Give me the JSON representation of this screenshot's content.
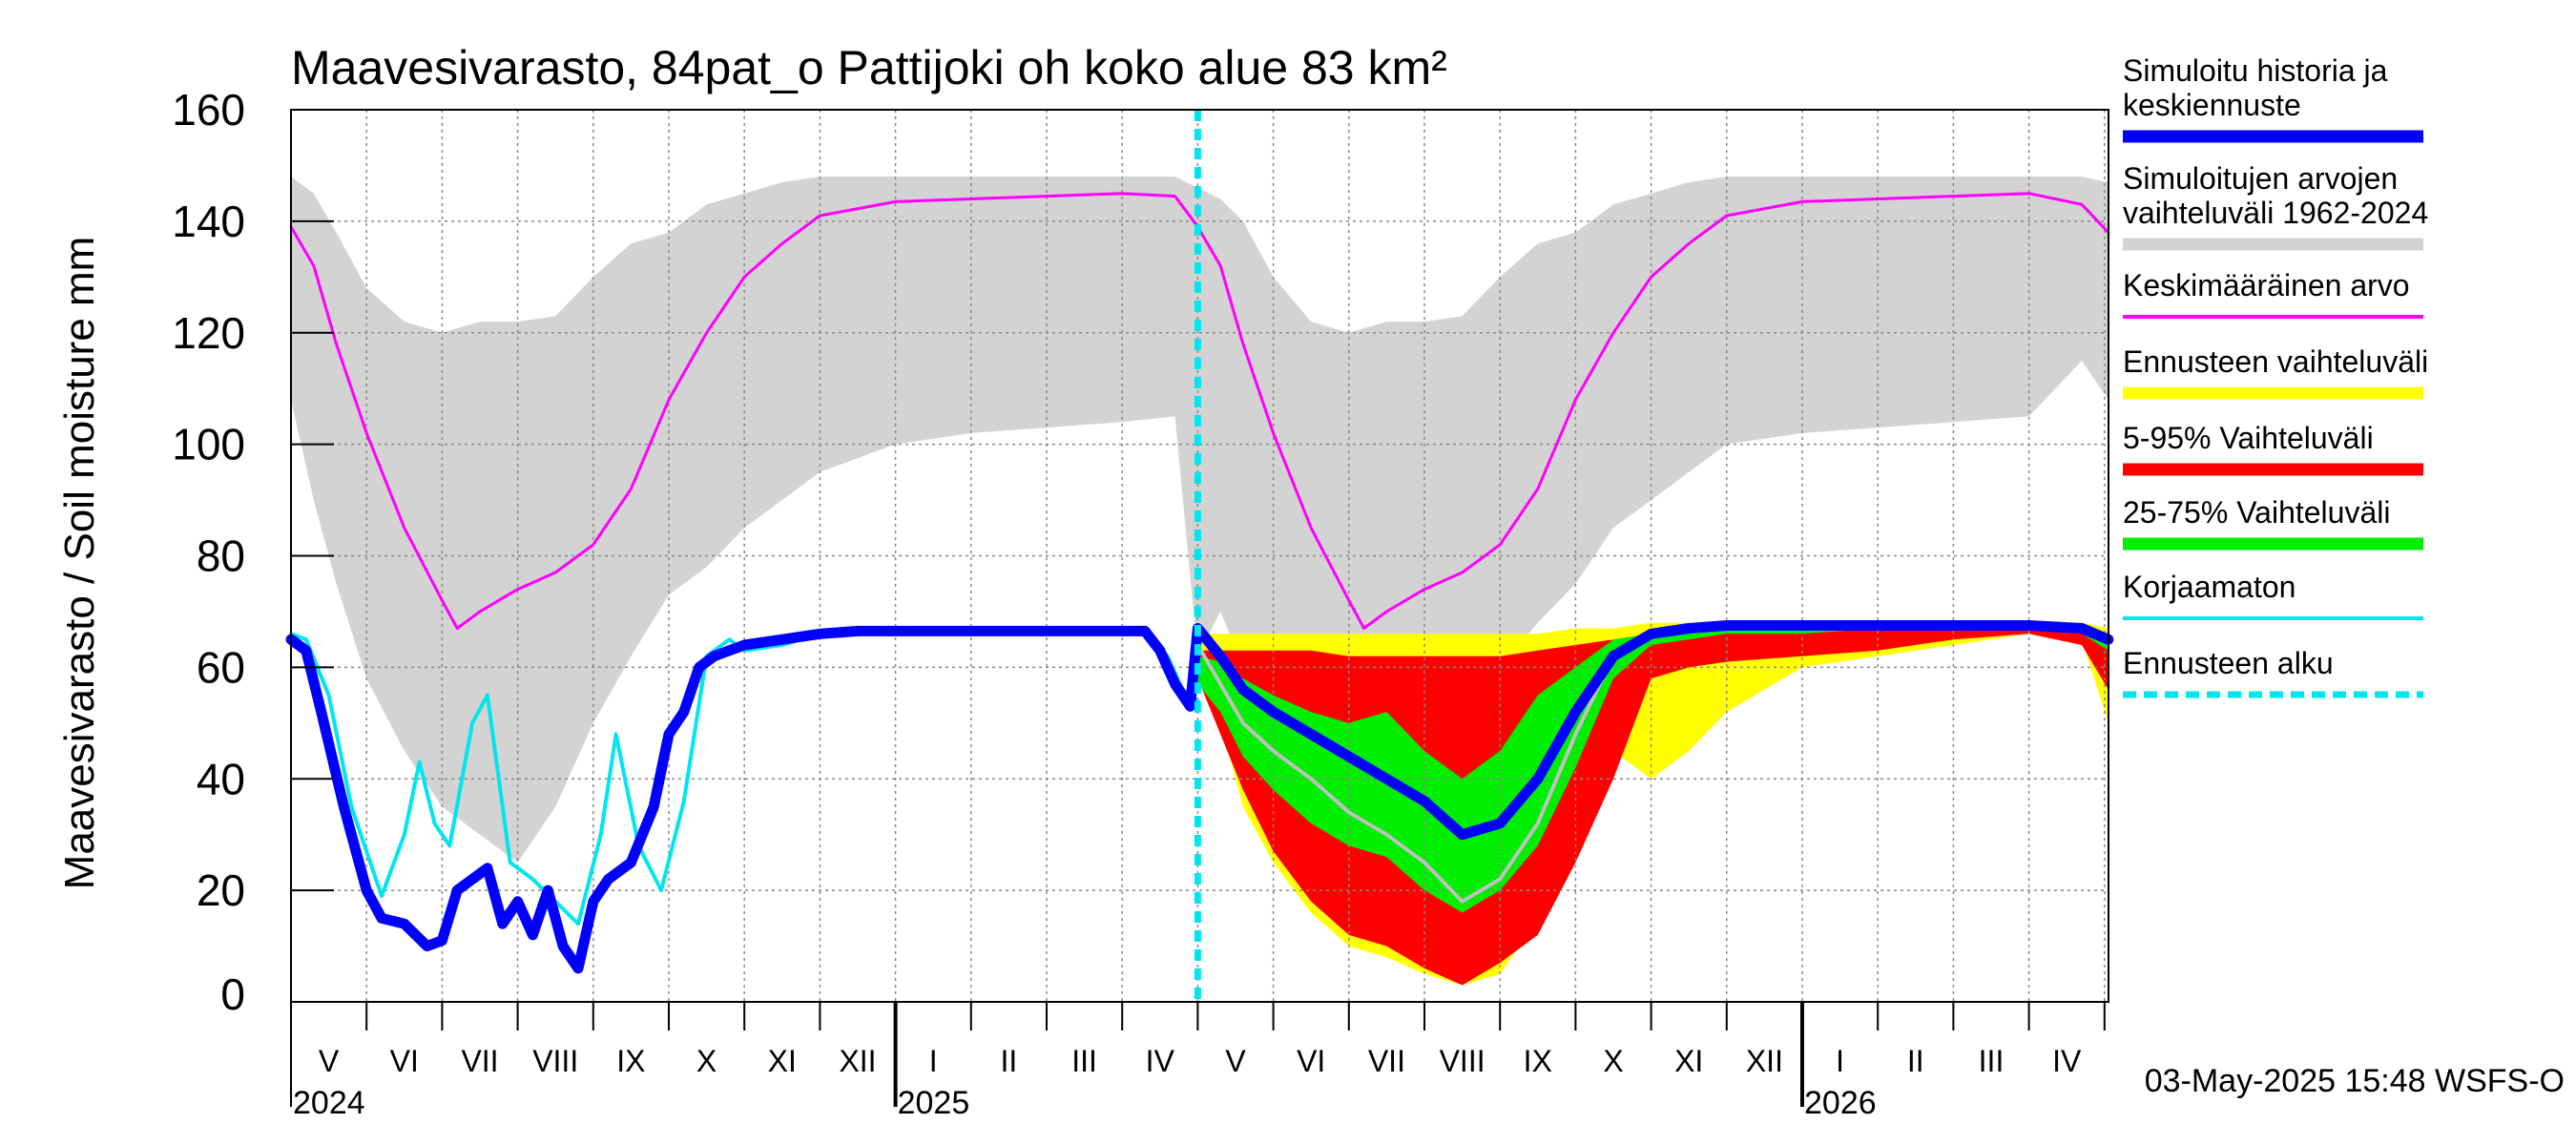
{
  "chart_data": {
    "type": "area",
    "title": "Maavesivarasto, 84pat_o Pattijoki oh koko alue 83 km²",
    "ylabel": "Maavesivarasto / Soil moisture   mm",
    "ylim": [
      0,
      160
    ],
    "yticks": [
      0,
      20,
      40,
      60,
      80,
      100,
      120,
      140,
      160
    ],
    "x_start": 0,
    "x_end": 24.05,
    "forecast_start": 12.0,
    "months": [
      {
        "label": "V",
        "pos": 0.5
      },
      {
        "label": "VI",
        "pos": 1.5
      },
      {
        "label": "VII",
        "pos": 2.5
      },
      {
        "label": "VIII",
        "pos": 3.5
      },
      {
        "label": "IX",
        "pos": 4.5
      },
      {
        "label": "X",
        "pos": 5.5
      },
      {
        "label": "XI",
        "pos": 6.5
      },
      {
        "label": "XII",
        "pos": 7.5
      },
      {
        "label": "I",
        "pos": 8.5
      },
      {
        "label": "II",
        "pos": 9.5
      },
      {
        "label": "III",
        "pos": 10.5
      },
      {
        "label": "IV",
        "pos": 11.5
      },
      {
        "label": "V",
        "pos": 12.5
      },
      {
        "label": "VI",
        "pos": 13.5
      },
      {
        "label": "VII",
        "pos": 14.5
      },
      {
        "label": "VIII",
        "pos": 15.5
      },
      {
        "label": "IX",
        "pos": 16.5
      },
      {
        "label": "X",
        "pos": 17.5
      },
      {
        "label": "XI",
        "pos": 18.5
      },
      {
        "label": "XII",
        "pos": 19.5
      },
      {
        "label": "I",
        "pos": 20.5
      },
      {
        "label": "II",
        "pos": 21.5
      },
      {
        "label": "III",
        "pos": 22.5
      },
      {
        "label": "IV",
        "pos": 23.5
      }
    ],
    "years": [
      {
        "label": "2024",
        "pos": 0
      },
      {
        "label": "2025",
        "pos": 8
      },
      {
        "label": "2026",
        "pos": 20
      }
    ],
    "year_dividers": [
      8,
      20
    ],
    "series": [
      {
        "name": "Simuloitujen arvojen vaihteluväli 1962-2024",
        "color": "#d3d3d3",
        "kind": "band",
        "x": [
          0,
          0.3,
          0.6,
          1.0,
          1.5,
          2.0,
          2.5,
          3.0,
          3.5,
          4.0,
          4.5,
          5.0,
          5.5,
          6.0,
          6.5,
          7.0,
          8.0,
          9.0,
          10.0,
          11.0,
          11.7,
          12.0,
          12.3,
          12.6,
          13.0,
          13.5,
          14.0,
          14.5,
          15.0,
          15.5,
          16.0,
          16.5,
          17.0,
          17.5,
          18.0,
          18.5,
          19.0,
          20.0,
          21.0,
          22.0,
          23.0,
          23.7,
          24.05
        ],
        "upper": [
          148,
          145,
          138,
          128,
          122,
          120,
          122,
          122,
          123,
          130,
          136,
          138,
          143,
          145,
          147,
          148,
          148,
          148,
          148,
          148,
          148,
          146,
          144,
          140,
          130,
          122,
          120,
          122,
          122,
          123,
          130,
          136,
          138,
          143,
          145,
          147,
          148,
          148,
          148,
          148,
          148,
          148,
          147
        ],
        "lower": [
          108,
          90,
          75,
          58,
          45,
          35,
          30,
          25,
          35,
          50,
          62,
          73,
          78,
          85,
          90,
          95,
          100,
          102,
          103,
          104,
          105,
          62,
          70,
          60,
          48,
          40,
          33,
          25,
          35,
          50,
          60,
          68,
          75,
          85,
          90,
          95,
          100,
          102,
          103,
          104,
          105,
          115,
          108
        ]
      },
      {
        "name": "Ennusteen vaihteluväli",
        "color": "#ffff00",
        "kind": "band",
        "x": [
          12.0,
          12.3,
          12.6,
          13.0,
          13.5,
          14.0,
          14.5,
          15.0,
          15.5,
          16.0,
          16.5,
          17.0,
          17.5,
          18.0,
          18.5,
          19.0,
          20.0,
          21.0,
          22.0,
          23.0,
          23.7,
          24.05
        ],
        "upper": [
          66,
          66,
          66,
          66,
          66,
          66,
          66,
          66,
          66,
          66,
          66,
          67,
          67,
          68,
          68,
          68,
          68,
          68,
          68,
          68,
          68,
          67
        ],
        "lower": [
          60,
          50,
          35,
          25,
          16,
          10,
          8,
          5,
          3,
          5,
          15,
          35,
          45,
          40,
          45,
          52,
          60,
          62,
          64,
          66,
          65,
          50
        ]
      },
      {
        "name": "5-95% Vaihteluväli",
        "color": "#ff0000",
        "kind": "band",
        "x": [
          12.0,
          12.3,
          12.6,
          13.0,
          13.5,
          14.0,
          14.5,
          15.0,
          15.5,
          16.0,
          16.5,
          17.0,
          17.5,
          18.0,
          18.5,
          19.0,
          20.0,
          21.0,
          22.0,
          23.0,
          23.7,
          24.05
        ],
        "upper": [
          63,
          63,
          63,
          63,
          63,
          62,
          62,
          62,
          62,
          62,
          63,
          64,
          65,
          66,
          66,
          67,
          67,
          67,
          67,
          67,
          66,
          66
        ],
        "lower": [
          58,
          48,
          38,
          27,
          18,
          12,
          10,
          6,
          3,
          7,
          12,
          25,
          40,
          58,
          60,
          61,
          62,
          63,
          65,
          66,
          64,
          56
        ]
      },
      {
        "name": "25-75% Vaihteluväli",
        "color": "#00ee00",
        "kind": "band",
        "x": [
          12.0,
          12.3,
          12.6,
          13.0,
          13.5,
          14.0,
          14.5,
          15.0,
          15.5,
          16.0,
          16.5,
          17.0,
          17.5,
          18.0,
          18.5,
          19.0,
          20.0,
          21.0,
          22.0,
          23.0,
          23.7,
          24.05
        ],
        "upper": [
          62,
          61,
          58,
          55,
          52,
          50,
          52,
          45,
          40,
          45,
          55,
          60,
          65,
          66,
          67,
          67,
          67,
          67,
          67,
          67,
          66,
          65
        ],
        "lower": [
          57,
          52,
          44,
          38,
          32,
          28,
          26,
          20,
          16,
          20,
          28,
          42,
          58,
          64,
          65,
          66,
          66,
          67,
          67,
          67,
          66,
          63
        ]
      },
      {
        "name": "Keskimääräinen arvo",
        "color": "#ff00ff",
        "kind": "line",
        "width": 3,
        "x": [
          0,
          0.3,
          0.6,
          1.0,
          1.5,
          2.0,
          2.2,
          2.5,
          3.0,
          3.5,
          4.0,
          4.5,
          5.0,
          5.5,
          6.0,
          6.5,
          7.0,
          8.0,
          9.0,
          10.0,
          11.0,
          11.7,
          12.0,
          12.3,
          12.6,
          13.0,
          13.5,
          14.0,
          14.2,
          14.5,
          15.0,
          15.5,
          16.0,
          16.5,
          17.0,
          17.5,
          18.0,
          18.5,
          19.0,
          20.0,
          21.0,
          22.0,
          23.0,
          23.7,
          24.05
        ],
        "y": [
          139,
          132,
          118,
          102,
          85,
          72,
          67,
          70,
          74,
          77,
          82,
          92,
          108,
          120,
          130,
          136,
          141,
          143.5,
          144,
          144.5,
          145,
          144.5,
          139,
          132,
          118,
          102,
          85,
          72,
          67,
          70,
          74,
          77,
          82,
          92,
          108,
          120,
          130,
          136,
          141,
          143.5,
          144,
          144.5,
          145,
          143,
          138
        ]
      },
      {
        "name": "Korjaamaton",
        "color": "#00e5ee",
        "kind": "line",
        "width": 4,
        "x": [
          0,
          0.2,
          0.5,
          0.8,
          1.2,
          1.5,
          1.7,
          1.9,
          2.1,
          2.4,
          2.6,
          2.9,
          3.2,
          3.5,
          3.8,
          4.1,
          4.3,
          4.6,
          4.9,
          5.2,
          5.5,
          5.8,
          6.0,
          6.5,
          7.0,
          7.5,
          8.0,
          9.0,
          10.0,
          11.0,
          11.3,
          11.6,
          11.8,
          12.0
        ],
        "y": [
          66,
          65,
          55,
          35,
          19,
          30,
          43,
          32,
          28,
          50,
          55,
          25,
          22,
          18,
          14,
          30,
          48,
          28,
          20,
          36,
          62,
          65,
          63,
          64,
          66,
          66.5,
          66.5,
          66.5,
          66.5,
          66,
          66,
          62,
          56,
          54
        ]
      },
      {
        "name": "Forecast median (grey)",
        "color": "#c0c0c0",
        "kind": "line",
        "width": 4,
        "x": [
          12.0,
          12.3,
          12.6,
          13.0,
          13.5,
          14.0,
          14.5,
          15.0,
          15.5,
          16.0,
          16.5,
          17.0,
          17.5
        ],
        "y": [
          64,
          57,
          50,
          45,
          40,
          34,
          30,
          25,
          18,
          22,
          32,
          48,
          62
        ]
      },
      {
        "name": "Simuloitu historia ja keskiennuste",
        "color": "#0000ff",
        "kind": "line",
        "width": 11,
        "x": [
          0,
          0.2,
          0.4,
          0.7,
          1.0,
          1.2,
          1.5,
          1.8,
          2.0,
          2.2,
          2.4,
          2.6,
          2.8,
          3.0,
          3.2,
          3.4,
          3.6,
          3.8,
          4.0,
          4.2,
          4.5,
          4.8,
          5.0,
          5.2,
          5.4,
          5.6,
          5.8,
          6.0,
          6.5,
          7.0,
          7.5,
          8.0,
          9.0,
          10.0,
          11.0,
          11.3,
          11.5,
          11.7,
          11.9,
          12.0,
          12.3,
          12.6,
          13.0,
          13.5,
          14.0,
          14.5,
          15.0,
          15.5,
          16.0,
          16.5,
          17.0,
          17.5,
          18.0,
          18.5,
          19.0,
          20.0,
          21.0,
          22.0,
          23.0,
          23.7,
          24.05
        ],
        "y": [
          65,
          63,
          52,
          35,
          20,
          15,
          14,
          10,
          11,
          20,
          22,
          24,
          14,
          18,
          12,
          20,
          10,
          6,
          18,
          22,
          25,
          35,
          48,
          52,
          60,
          62,
          63,
          64,
          65,
          66,
          66.5,
          66.5,
          66.5,
          66.5,
          66.5,
          66.5,
          63,
          57,
          53,
          67,
          62,
          56,
          52,
          48,
          44,
          40,
          36,
          30,
          32,
          40,
          52,
          62,
          66,
          67,
          67.5,
          67.5,
          67.5,
          67.5,
          67.5,
          67,
          65
        ]
      }
    ],
    "legend": [
      {
        "label": "Simuloitu historia ja keskiennuste",
        "color": "#0000ff",
        "style": "thick"
      },
      {
        "label": "Simuloitujen arvojen vaihteluväli 1962-2024",
        "color": "#d3d3d3",
        "style": "thick"
      },
      {
        "label": "Keskimääräinen arvo",
        "color": "#ff00ff",
        "style": "thin"
      },
      {
        "label": "Ennusteen vaihteluväli",
        "color": "#ffff00",
        "style": "thick"
      },
      {
        "label": "5-95% Vaihteluväli",
        "color": "#ff0000",
        "style": "thick"
      },
      {
        "label": "25-75% Vaihteluväli",
        "color": "#00ee00",
        "style": "thick"
      },
      {
        "label": "Korjaamaton",
        "color": "#00e5ee",
        "style": "thin"
      },
      {
        "label": "Ennusteen alku",
        "color": "#00e5ee",
        "style": "dashed"
      }
    ],
    "footer": "03-May-2025 15:48 WSFS-O"
  }
}
